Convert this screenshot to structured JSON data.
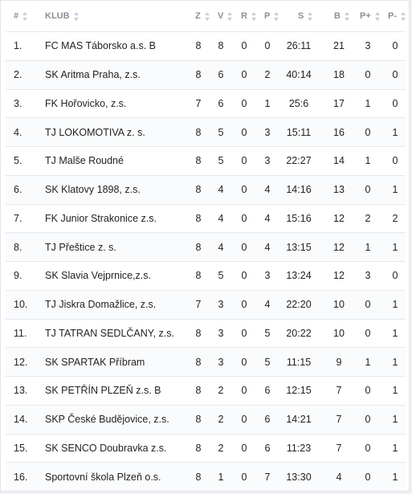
{
  "columns": {
    "rank": "#",
    "club": "KLUB",
    "z": "Z",
    "v": "V",
    "r": "R",
    "p": "P",
    "s": "S",
    "b": "B",
    "pp": "P+",
    "pm": "P-"
  },
  "rows": [
    {
      "rank": "1.",
      "club": "FC MAS Táborsko a.s. B",
      "z": "8",
      "v": "8",
      "r": "0",
      "p": "0",
      "s": "26:11",
      "b": "21",
      "pp": "3",
      "pm": "0"
    },
    {
      "rank": "2.",
      "club": "SK Aritma Praha, z.s.",
      "z": "8",
      "v": "6",
      "r": "0",
      "p": "2",
      "s": "40:14",
      "b": "18",
      "pp": "0",
      "pm": "0"
    },
    {
      "rank": "3.",
      "club": "FK Hořovicko, z.s.",
      "z": "7",
      "v": "6",
      "r": "0",
      "p": "1",
      "s": "25:6",
      "b": "17",
      "pp": "1",
      "pm": "0"
    },
    {
      "rank": "4.",
      "club": "TJ LOKOMOTIVA z. s.",
      "z": "8",
      "v": "5",
      "r": "0",
      "p": "3",
      "s": "15:11",
      "b": "16",
      "pp": "0",
      "pm": "1"
    },
    {
      "rank": "5.",
      "club": "TJ Malše Roudné",
      "z": "8",
      "v": "5",
      "r": "0",
      "p": "3",
      "s": "22:27",
      "b": "14",
      "pp": "1",
      "pm": "0"
    },
    {
      "rank": "6.",
      "club": "SK Klatovy 1898, z.s.",
      "z": "8",
      "v": "4",
      "r": "0",
      "p": "4",
      "s": "14:16",
      "b": "13",
      "pp": "0",
      "pm": "1"
    },
    {
      "rank": "7.",
      "club": "FK Junior Strakonice z.s.",
      "z": "8",
      "v": "4",
      "r": "0",
      "p": "4",
      "s": "15:16",
      "b": "12",
      "pp": "2",
      "pm": "2"
    },
    {
      "rank": "8.",
      "club": "TJ Přeštice z. s.",
      "z": "8",
      "v": "4",
      "r": "0",
      "p": "4",
      "s": "13:15",
      "b": "12",
      "pp": "1",
      "pm": "1"
    },
    {
      "rank": "9.",
      "club": "SK Slavia Vejprnice,z.s.",
      "z": "8",
      "v": "5",
      "r": "0",
      "p": "3",
      "s": "13:24",
      "b": "12",
      "pp": "3",
      "pm": "0"
    },
    {
      "rank": "10.",
      "club": "TJ Jiskra Domažlice, z.s.",
      "z": "7",
      "v": "3",
      "r": "0",
      "p": "4",
      "s": "22:20",
      "b": "10",
      "pp": "0",
      "pm": "1"
    },
    {
      "rank": "11.",
      "club": "TJ TATRAN SEDLČANY, z.s.",
      "z": "8",
      "v": "3",
      "r": "0",
      "p": "5",
      "s": "20:22",
      "b": "10",
      "pp": "0",
      "pm": "1"
    },
    {
      "rank": "12.",
      "club": "SK SPARTAK Příbram",
      "z": "8",
      "v": "3",
      "r": "0",
      "p": "5",
      "s": "11:15",
      "b": "9",
      "pp": "1",
      "pm": "1"
    },
    {
      "rank": "13.",
      "club": "SK PETŘÍN PLZEŇ z.s. B",
      "z": "8",
      "v": "2",
      "r": "0",
      "p": "6",
      "s": "12:15",
      "b": "7",
      "pp": "0",
      "pm": "1"
    },
    {
      "rank": "14.",
      "club": "SKP České Budějovice, z.s.",
      "z": "8",
      "v": "2",
      "r": "0",
      "p": "6",
      "s": "14:21",
      "b": "7",
      "pp": "0",
      "pm": "1"
    },
    {
      "rank": "15.",
      "club": "SK SENCO Doubravka z.s.",
      "z": "8",
      "v": "2",
      "r": "0",
      "p": "6",
      "s": "11:23",
      "b": "7",
      "pp": "0",
      "pm": "1"
    },
    {
      "rank": "16.",
      "club": "Sportovní škola Plzeň o.s.",
      "z": "8",
      "v": "1",
      "r": "0",
      "p": "7",
      "s": "13:30",
      "b": "4",
      "pp": "0",
      "pm": "1"
    }
  ]
}
